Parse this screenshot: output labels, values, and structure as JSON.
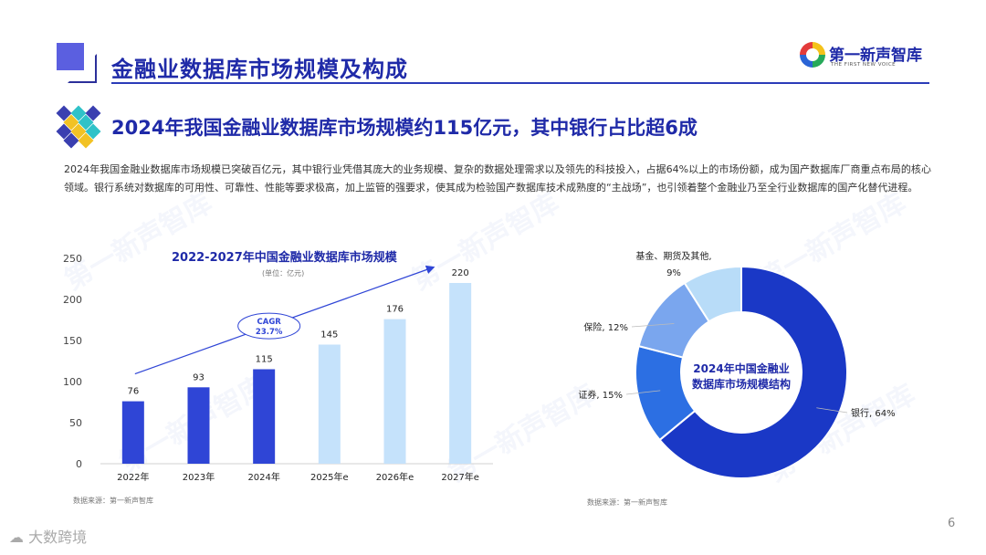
{
  "header": {
    "title": "金融业数据库市场规模及构成",
    "brand_name": "第一新声智库",
    "brand_tagline": "THE FIRST NEW VOICE"
  },
  "section": {
    "title": "2024年我国金融业数据库市场规模约115亿元，其中银行占比超6成",
    "paragraph": "2024年我国金融业数据库市场规模已突破百亿元，其中银行业凭借其庞大的业务规模、复杂的数据处理需求以及领先的科技投入，占据64%以上的市场份额，成为国产数据库厂商重点布局的核心领域。银行系统对数据库的可用性、可靠性、性能等要求极高，加上监管的强要求，使其成为检验国产数据库技术成熟度的“主战场”，也引领着整个金融业乃至全行业数据库的国产化替代进程。"
  },
  "watermark": "第一新声智库",
  "chart_data": [
    {
      "type": "bar",
      "title": "2022-2027年中国金融业数据库市场规模",
      "unit": "(单位：亿元)",
      "categories": [
        "2022年",
        "2023年",
        "2024年",
        "2025年e",
        "2026年e",
        "2027年e"
      ],
      "values": [
        76,
        93,
        115,
        145,
        176,
        220
      ],
      "forecast_from_index": 3,
      "yticks": [
        "0",
        "50",
        "100",
        "150",
        "200",
        "250"
      ],
      "ylim": [
        0,
        250
      ],
      "annotation": "CAGR\n23.7%",
      "annotation_lines": [
        "CAGR",
        "23.7%"
      ],
      "colors": {
        "actual": "#2f45d6",
        "forecast": "#c5e2fb",
        "arrow": "#2f45d6"
      },
      "source": "数据来源：第一新声智库"
    },
    {
      "type": "pie",
      "donut": true,
      "center_label_lines": [
        "2024年中国金融业",
        "数据库市场规模结构"
      ],
      "slices": [
        {
          "label": "银行, 64%",
          "value": 64,
          "color": "#1a38c6"
        },
        {
          "label": "证券, 15%",
          "value": 15,
          "color": "#2c6fe3"
        },
        {
          "label": "保险, 12%",
          "value": 12,
          "color": "#7aa6ee"
        },
        {
          "label_lines": [
            "基金、期货及其他,",
            "9%"
          ],
          "value": 9,
          "color": "#b8dcf8"
        }
      ],
      "source": "数据来源：第一新声智库"
    }
  ],
  "footer": {
    "logo_text": "大数跨境",
    "page_number": "6"
  }
}
